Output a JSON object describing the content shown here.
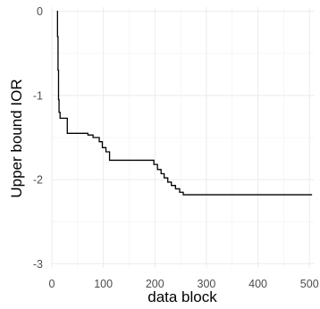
{
  "chart_data": {
    "type": "line",
    "title": "",
    "xlabel": "data block",
    "ylabel": "Upper bound IOR",
    "xlim": [
      0,
      510
    ],
    "ylim": [
      -3.05,
      0.05
    ],
    "x_ticks": [
      0,
      100,
      200,
      300,
      400,
      500
    ],
    "y_ticks": [
      0,
      -1,
      -2,
      -3
    ],
    "x_tick_labels": [
      "0",
      "100",
      "200",
      "300",
      "400",
      "500"
    ],
    "y_tick_labels": [
      "0",
      "-1",
      "-2",
      "-3"
    ],
    "grid": true,
    "legend": "none",
    "line_color": "#000000",
    "series": [
      {
        "step": "post",
        "points": [
          [
            10,
            0
          ],
          [
            11,
            -0.3
          ],
          [
            12,
            -0.7
          ],
          [
            13,
            -1.05
          ],
          [
            14,
            -1.2
          ],
          [
            16,
            -1.27
          ],
          [
            30,
            -1.45
          ],
          [
            70,
            -1.47
          ],
          [
            80,
            -1.5
          ],
          [
            92,
            -1.55
          ],
          [
            98,
            -1.62
          ],
          [
            105,
            -1.67
          ],
          [
            112,
            -1.77
          ],
          [
            198,
            -1.82
          ],
          [
            205,
            -1.88
          ],
          [
            212,
            -1.93
          ],
          [
            218,
            -1.98
          ],
          [
            225,
            -2.03
          ],
          [
            232,
            -2.07
          ],
          [
            240,
            -2.11
          ],
          [
            248,
            -2.15
          ],
          [
            255,
            -2.18
          ],
          [
            505,
            -2.18
          ]
        ]
      }
    ]
  }
}
